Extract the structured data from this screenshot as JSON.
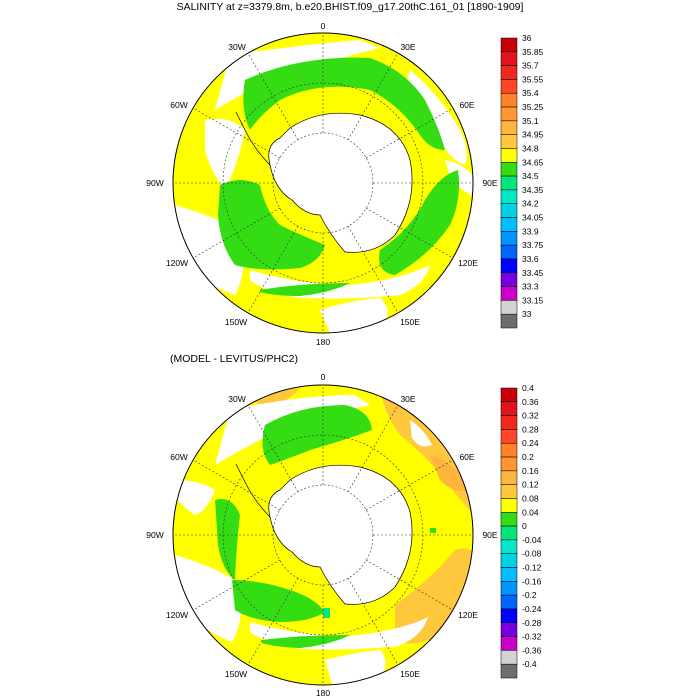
{
  "maps": [
    {
      "title": "SALINITY at z=3379.8m, b.e20.BHIST.f09_g17.20thC.161_01 [1890-1909]",
      "longitude_labels": [
        "0",
        "30E",
        "60E",
        "90E",
        "120E",
        "150E",
        "180",
        "150W",
        "120W",
        "90W",
        "60W",
        "30W"
      ],
      "colorbar": {
        "labels": [
          "36",
          "35.85",
          "35.7",
          "35.55",
          "35.4",
          "35.25",
          "35.1",
          "34.95",
          "34.8",
          "34.65",
          "34.5",
          "34.35",
          "34.2",
          "34.05",
          "33.9",
          "33.75",
          "33.6",
          "33.45",
          "33.3",
          "33.15",
          "33"
        ],
        "colors": [
          "#c8000a",
          "#e0141e",
          "#f0281e",
          "#ff4628",
          "#ff8228",
          "#ff9632",
          "#ffb43c",
          "#ffc83c",
          "#ffff00",
          "#34dc14",
          "#00e67a",
          "#00e8c8",
          "#00d2e6",
          "#00beff",
          "#0096ff",
          "#0064ff",
          "#0000ff",
          "#7800dc",
          "#c800c8",
          "#d2d2d2",
          "#6e6e6e"
        ]
      }
    },
    {
      "title": "(MODEL - LEVITUS/PHC2)",
      "longitude_labels": [
        "0",
        "30E",
        "60E",
        "90E",
        "120E",
        "150E",
        "180",
        "150W",
        "120W",
        "90W",
        "60W",
        "30W"
      ],
      "colorbar": {
        "labels": [
          "0.4",
          "0.36",
          "0.32",
          "0.28",
          "0.24",
          "0.2",
          "0.16",
          "0.12",
          "0.08",
          "0.04",
          "0",
          "-0.04",
          "-0.08",
          "-0.12",
          "-0.16",
          "-0.2",
          "-0.24",
          "-0.28",
          "-0.32",
          "-0.36",
          "-0.4"
        ],
        "colors": [
          "#c8000a",
          "#e0141e",
          "#f0281e",
          "#ff4628",
          "#ff8228",
          "#ff9632",
          "#ffb43c",
          "#ffc83c",
          "#ffff00",
          "#34dc14",
          "#00e67a",
          "#00e8c8",
          "#00d2e6",
          "#00beff",
          "#0096ff",
          "#0064ff",
          "#0000ff",
          "#7800dc",
          "#c800c8",
          "#d2d2d2",
          "#6e6e6e"
        ]
      }
    }
  ]
}
